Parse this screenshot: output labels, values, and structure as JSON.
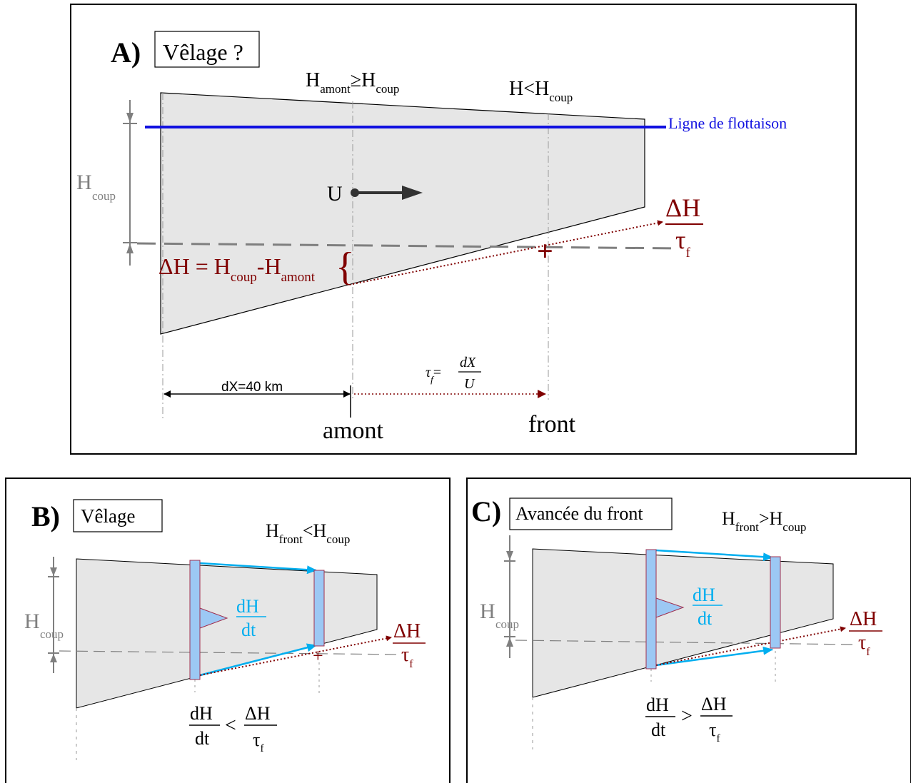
{
  "colors": {
    "frame": "#000000",
    "ice": "#e6e6e6",
    "waterline": "#1010e0",
    "grey": "#7f7f7f",
    "darkred": "#800000",
    "cyan": "#00aeef",
    "bar_fill": "#9cc8f4",
    "bar_stroke": "#a03050",
    "dark_arrow": "#333333"
  },
  "panelA": {
    "letter": "A)",
    "title": "Vêlage ?",
    "h_amont_lhs": "H",
    "h_amont_sub": "amont",
    "h_amont_op": "≥H",
    "h_amont_sub2": "coup",
    "h_front_lhs": "H",
    "h_front_op": "<H",
    "h_front_sub": "coup",
    "waterline_label": "Ligne de flottaison",
    "hcoup_main": "H",
    "hcoup_sub": "coup",
    "u_label": "U",
    "dh_eq_a": "ΔH = H",
    "dh_eq_sub1": "coup",
    "dh_eq_b": "-H",
    "dh_eq_sub2": "amont",
    "brace": "{",
    "ratio_num": "ΔH",
    "ratio_den": "τ",
    "ratio_den_sub": "f",
    "plus": "+",
    "dx_label": "dX=40 km",
    "tau_lhs": "τ",
    "tau_sub": "f",
    "tau_eq": "=",
    "tau_num": "dX",
    "tau_den": "U",
    "amont_label": "amont",
    "front_label": "front"
  },
  "panelB": {
    "letter": "B)",
    "title": "Vêlage",
    "cond_lhs": "H",
    "cond_sub1": "front",
    "cond_op": "<H",
    "cond_sub2": "coup",
    "hcoup_main": "H",
    "hcoup_sub": "coup",
    "rate_num": "dH",
    "rate_den": "dt",
    "ratio_num": "ΔH",
    "ratio_den": "τ",
    "ratio_den_sub": "f",
    "plus": "+",
    "ineq_lhs_num": "dH",
    "ineq_lhs_den": "dt",
    "ineq_op": "<",
    "ineq_rhs_num": "ΔH",
    "ineq_rhs_den": "τ",
    "ineq_rhs_sub": "f"
  },
  "panelC": {
    "letter": "C)",
    "title": "Avancée du front",
    "cond_lhs": "H",
    "cond_sub1": "front",
    "cond_op": ">H",
    "cond_sub2": "coup",
    "hcoup_main": "H",
    "hcoup_sub": "coup",
    "rate_num": "dH",
    "rate_den": "dt",
    "ratio_num": "ΔH",
    "ratio_den": "τ",
    "ratio_den_sub": "f",
    "ineq_lhs_num": "dH",
    "ineq_lhs_den": "dt",
    "ineq_op": ">",
    "ineq_rhs_num": "ΔH",
    "ineq_rhs_den": "τ",
    "ineq_rhs_sub": "f"
  }
}
